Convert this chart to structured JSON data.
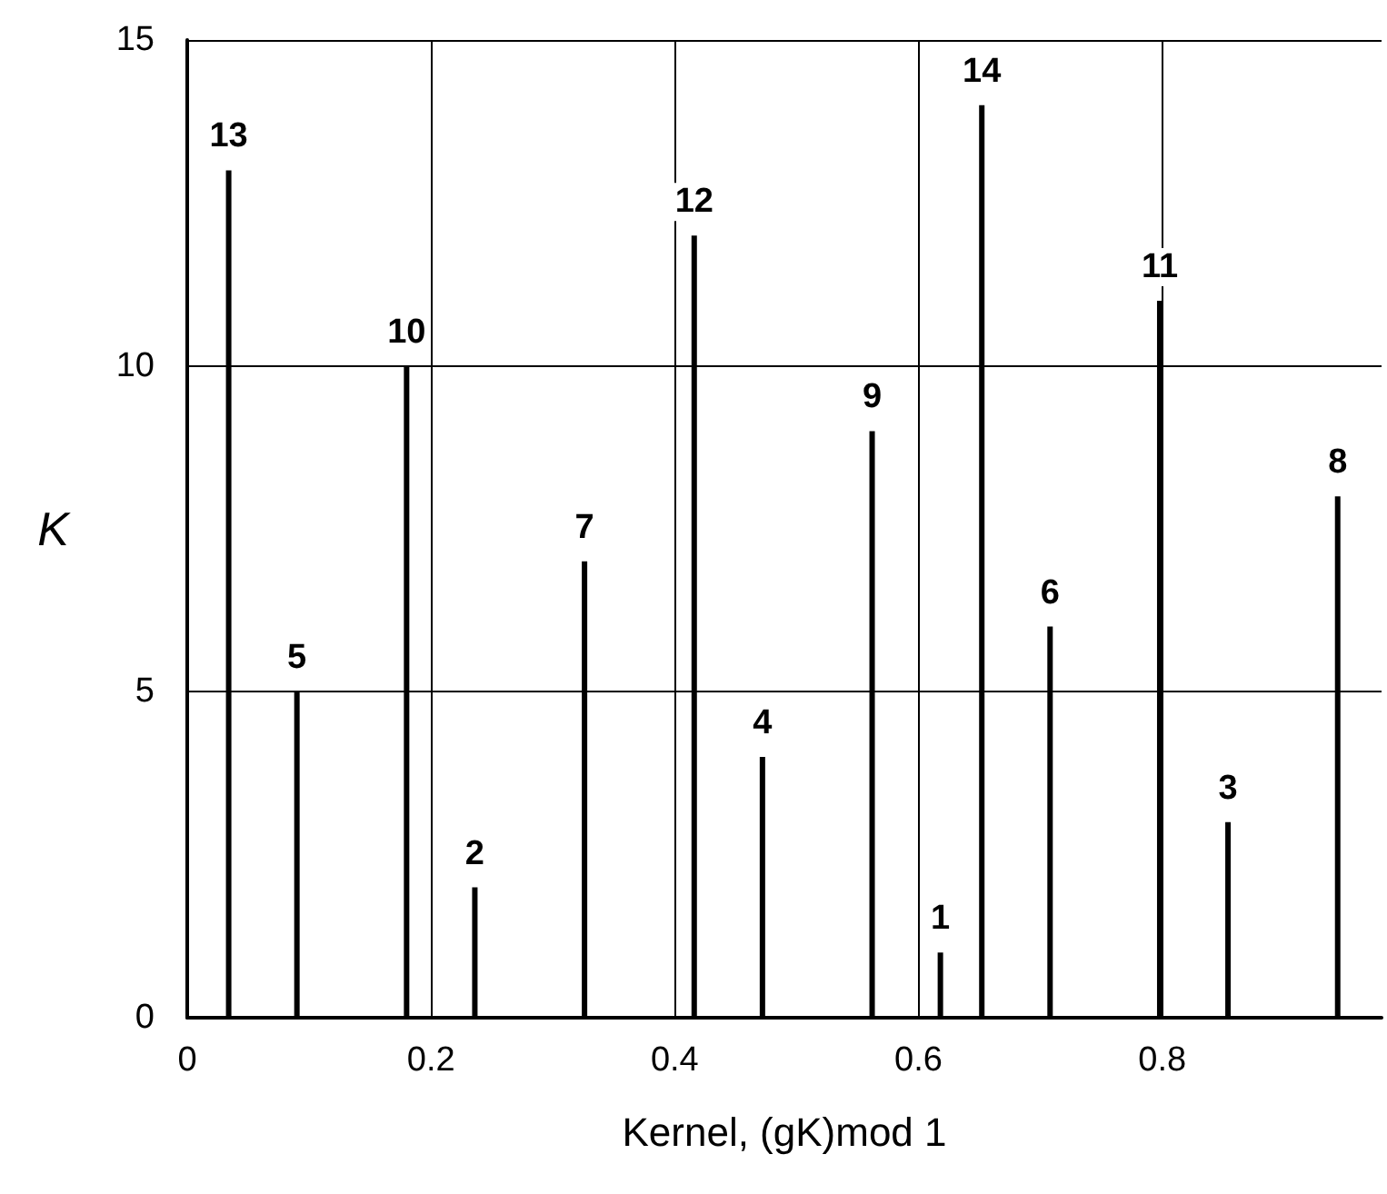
{
  "chart_data": {
    "type": "bar",
    "xlabel": "Kernel, (gK)mod 1",
    "ylabel": "K",
    "x": [
      0.034,
      0.09,
      0.18,
      0.236,
      0.326,
      0.416,
      0.472,
      0.562,
      0.618,
      0.652,
      0.708,
      0.798,
      0.854,
      0.944
    ],
    "values": [
      13,
      5,
      10,
      2,
      7,
      12,
      4,
      9,
      1,
      14,
      6,
      11,
      3,
      8
    ],
    "color": "#000000",
    "data_labels": true,
    "xlim": [
      0,
      0.98
    ],
    "xticks": [
      0,
      0.2,
      0.4,
      0.6,
      0.8
    ],
    "ylim": [
      0,
      15
    ],
    "yticks": [
      0,
      5,
      10,
      15
    ],
    "grid": true
  }
}
